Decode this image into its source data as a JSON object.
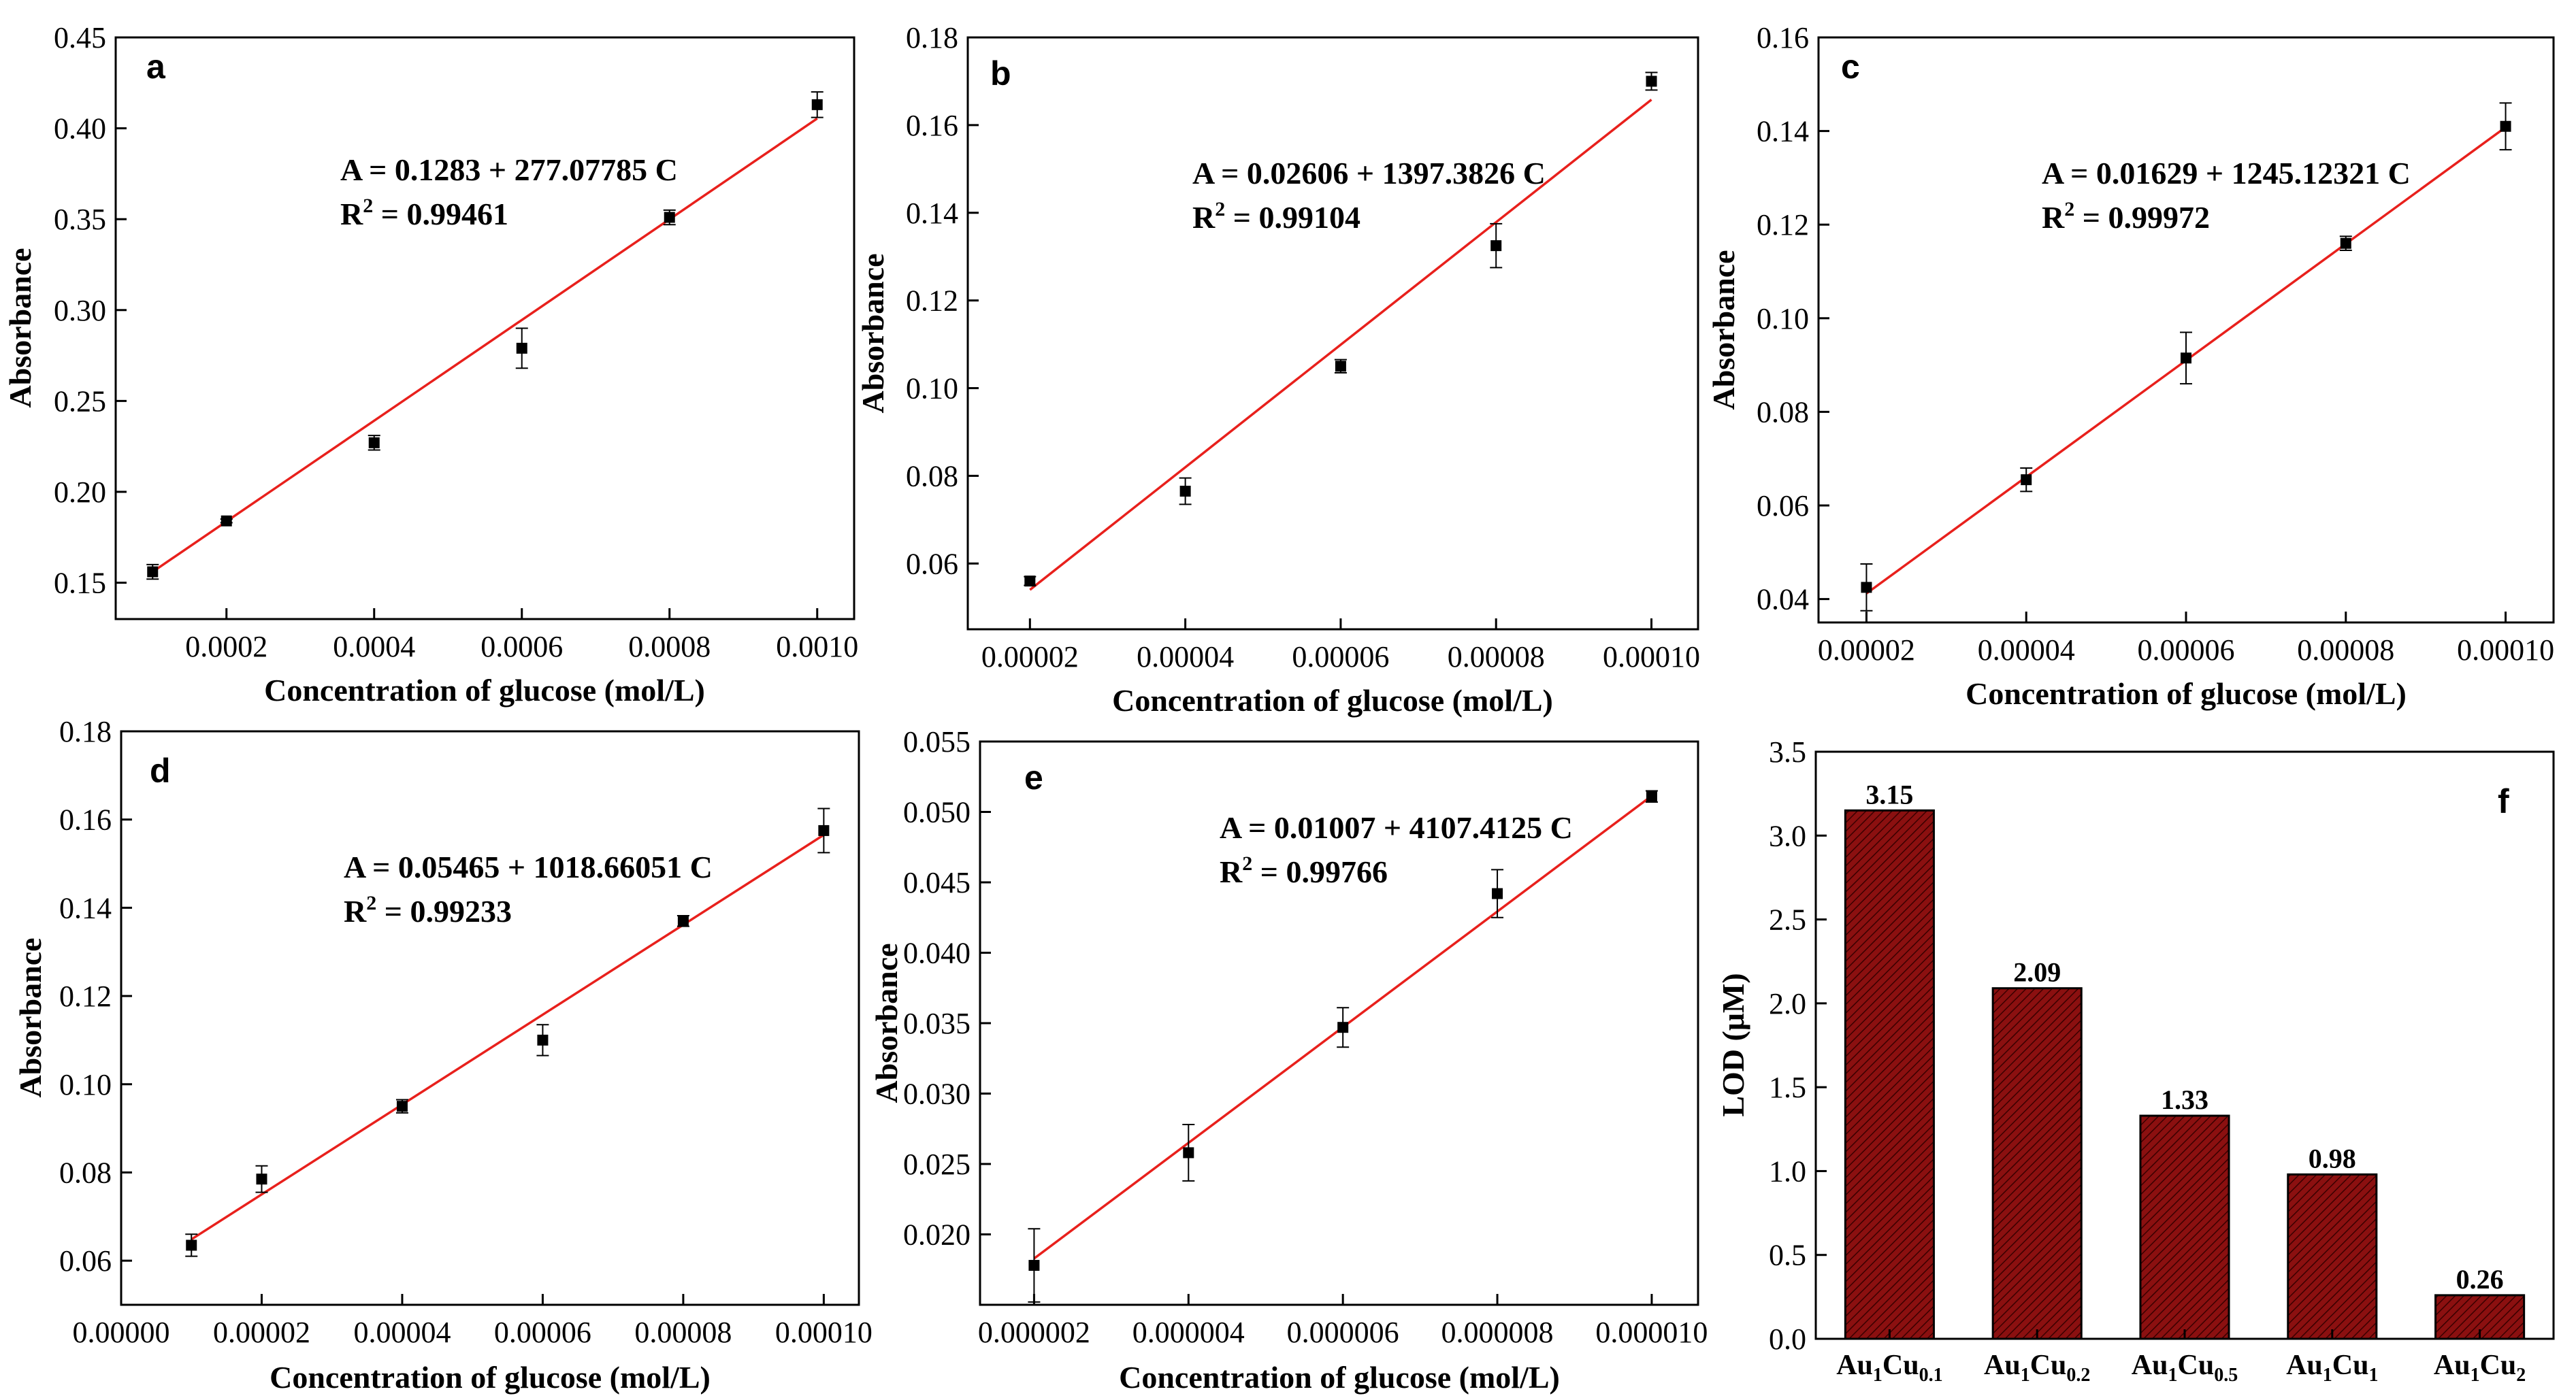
{
  "chart_data": [
    {
      "panel": "a",
      "type": "scatter",
      "xlabel": "Concentration of glucose (mol/L)",
      "ylabel": "Absorbance",
      "xlim": [
        5e-05,
        0.00105
      ],
      "ylim": [
        0.13,
        0.45
      ],
      "xticks": [
        0.0002,
        0.0004,
        0.0006,
        0.0008,
        0.001
      ],
      "xtick_labels": [
        "0.0002",
        "0.0004",
        "0.0006",
        "0.0008",
        "0.0010"
      ],
      "yticks": [
        0.15,
        0.2,
        0.25,
        0.3,
        0.35,
        0.4,
        0.45
      ],
      "ytick_labels": [
        "0.15",
        "0.20",
        "0.25",
        "0.30",
        "0.35",
        "0.40",
        "0.45"
      ],
      "x": [
        0.0001,
        0.0002,
        0.0004,
        0.0006,
        0.0008,
        0.001
      ],
      "y": [
        0.156,
        0.184,
        0.227,
        0.279,
        0.351,
        0.413
      ],
      "err": [
        0.004,
        0.001,
        0.004,
        0.011,
        0.004,
        0.007
      ],
      "fit": {
        "intercept": 0.1283,
        "slope": 277.07785
      },
      "equation": "A = 0.1283 + 277.07785 C",
      "r2_prefix": "R",
      "r2_sup": "2",
      "r2_value": " = 0.99461",
      "fit_color": "#e8201c"
    },
    {
      "panel": "b",
      "type": "scatter",
      "xlabel": "Concentration of glucose (mol/L)",
      "ylabel": "Absorbance",
      "xlim": [
        1.2e-05,
        0.000106
      ],
      "ylim": [
        0.045,
        0.18
      ],
      "xticks": [
        2e-05,
        4e-05,
        6e-05,
        8e-05,
        0.0001
      ],
      "xtick_labels": [
        "0.00002",
        "0.00004",
        "0.00006",
        "0.00008",
        "0.00010"
      ],
      "yticks": [
        0.06,
        0.08,
        0.1,
        0.12,
        0.14,
        0.16,
        0.18
      ],
      "ytick_labels": [
        "0.06",
        "0.08",
        "0.10",
        "0.12",
        "0.14",
        "0.16",
        "0.18"
      ],
      "x": [
        2e-05,
        4e-05,
        6e-05,
        8e-05,
        0.0001
      ],
      "y": [
        0.056,
        0.0765,
        0.105,
        0.1325,
        0.17
      ],
      "err": [
        0.001,
        0.003,
        0.0015,
        0.005,
        0.002
      ],
      "fit": {
        "intercept": 0.02606,
        "slope": 1397.3826
      },
      "equation": "A = 0.02606 + 1397.3826 C",
      "r2_prefix": "R",
      "r2_sup": "2",
      "r2_value": " = 0.99104",
      "fit_color": "#e8201c"
    },
    {
      "panel": "c",
      "type": "scatter",
      "xlabel": "Concentration of glucose (mol/L)",
      "ylabel": "Absorbance",
      "xlim": [
        1.4e-05,
        0.000106
      ],
      "ylim": [
        0.035,
        0.16
      ],
      "xticks": [
        2e-05,
        4e-05,
        6e-05,
        8e-05,
        0.0001
      ],
      "xtick_labels": [
        "0.00002",
        "0.00004",
        "0.00006",
        "0.00008",
        "0.00010"
      ],
      "yticks": [
        0.04,
        0.06,
        0.08,
        0.1,
        0.12,
        0.14,
        0.16
      ],
      "ytick_labels": [
        "0.04",
        "0.06",
        "0.08",
        "0.10",
        "0.12",
        "0.14",
        "0.16"
      ],
      "x": [
        2e-05,
        4e-05,
        6e-05,
        8e-05,
        0.0001
      ],
      "y": [
        0.0425,
        0.0655,
        0.0915,
        0.116,
        0.141
      ],
      "err": [
        0.005,
        0.0025,
        0.0055,
        0.0015,
        0.005
      ],
      "fit": {
        "intercept": 0.01629,
        "slope": 1245.12321
      },
      "equation": "A = 0.01629 + 1245.12321 C",
      "r2_prefix": "R",
      "r2_sup": "2",
      "r2_value": " = 0.99972",
      "fit_color": "#e8201c"
    },
    {
      "panel": "d",
      "type": "scatter",
      "xlabel": "Concentration of glucose (mol/L)",
      "ylabel": "Absorbance",
      "xlim": [
        0.0,
        0.000105
      ],
      "ylim": [
        0.05,
        0.18
      ],
      "xticks": [
        0.0,
        2e-05,
        4e-05,
        6e-05,
        8e-05,
        0.0001
      ],
      "xtick_labels": [
        "0.00000",
        "0.00002",
        "0.00004",
        "0.00006",
        "0.00008",
        "0.00010"
      ],
      "yticks": [
        0.06,
        0.08,
        0.1,
        0.12,
        0.14,
        0.16,
        0.18
      ],
      "ytick_labels": [
        "0.06",
        "0.08",
        "0.10",
        "0.12",
        "0.14",
        "0.16",
        "0.18"
      ],
      "x": [
        1e-05,
        2e-05,
        4e-05,
        6e-05,
        8e-05,
        0.0001
      ],
      "y": [
        0.0635,
        0.0785,
        0.095,
        0.11,
        0.137,
        0.1575
      ],
      "err": [
        0.0025,
        0.003,
        0.0015,
        0.0035,
        0.0012,
        0.005
      ],
      "fit": {
        "intercept": 0.05465,
        "slope": 1018.66051
      },
      "equation": "A = 0.05465 + 1018.66051 C",
      "r2_prefix": "R",
      "r2_sup": "2",
      "r2_value": " = 0.99233",
      "fit_color": "#e8201c"
    },
    {
      "panel": "e",
      "type": "scatter",
      "xlabel": "Concentration of glucose (mol/L)",
      "ylabel": "Absorbance",
      "xlim": [
        1.3e-06,
        1.06e-05
      ],
      "ylim": [
        0.015,
        0.055
      ],
      "xticks": [
        2e-06,
        4e-06,
        6e-06,
        8e-06,
        1e-05
      ],
      "xtick_labels": [
        "0.000002",
        "0.000004",
        "0.000006",
        "0.000008",
        "0.000010"
      ],
      "yticks": [
        0.02,
        0.025,
        0.03,
        0.035,
        0.04,
        0.045,
        0.05,
        0.055
      ],
      "ytick_labels": [
        "0.020",
        "0.025",
        "0.030",
        "0.035",
        "0.040",
        "0.045",
        "0.050",
        "0.055"
      ],
      "x": [
        2e-06,
        4e-06,
        6e-06,
        8e-06,
        1e-05
      ],
      "y": [
        0.0178,
        0.0258,
        0.0347,
        0.0442,
        0.0511
      ],
      "err": [
        0.0026,
        0.002,
        0.0014,
        0.0017,
        0.0004
      ],
      "fit": {
        "intercept": 0.01007,
        "slope": 4107.4125
      },
      "equation": "A = 0.01007 + 4107.4125 C",
      "r2_prefix": "R",
      "r2_sup": "2",
      "r2_value": " = 0.99766",
      "fit_color": "#e8201c"
    },
    {
      "panel": "f",
      "type": "bar",
      "ylabel_main": "LOD (",
      "ylabel_unit": "μM",
      "ylabel_close": ")",
      "ylim": [
        0,
        3.5
      ],
      "yticks": [
        0.0,
        0.5,
        1.0,
        1.5,
        2.0,
        2.5,
        3.0,
        3.5
      ],
      "ytick_labels": [
        "0.0",
        "0.5",
        "1.0",
        "1.5",
        "2.0",
        "2.5",
        "3.0",
        "3.5"
      ],
      "categories": [
        {
          "base": "Au",
          "s1": "1",
          "mid": "Cu",
          "s2": "0.1"
        },
        {
          "base": "Au",
          "s1": "1",
          "mid": "Cu",
          "s2": "0.2"
        },
        {
          "base": "Au",
          "s1": "1",
          "mid": "Cu",
          "s2": "0.5"
        },
        {
          "base": "Au",
          "s1": "1",
          "mid": "Cu",
          "s2": "1"
        },
        {
          "base": "Au",
          "s1": "1",
          "mid": "Cu",
          "s2": "2"
        }
      ],
      "values": [
        3.15,
        2.09,
        1.33,
        0.98,
        0.26
      ],
      "value_labels": [
        "3.15",
        "2.09",
        "1.33",
        "0.98",
        "0.26"
      ],
      "bar_color": "#8b1010",
      "hatch_color": "#3a0000"
    }
  ]
}
